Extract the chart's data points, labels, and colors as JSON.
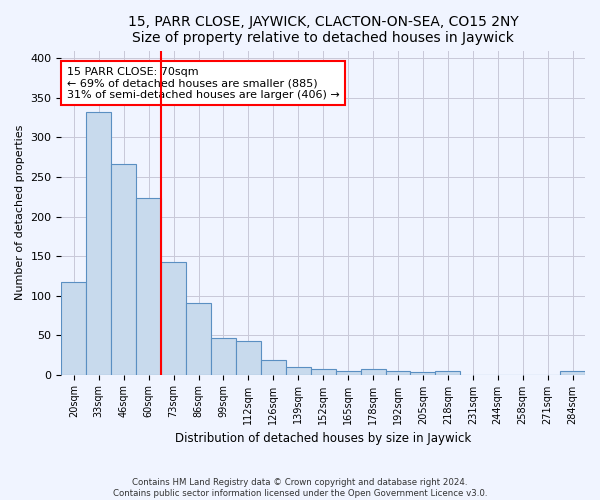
{
  "title": "15, PARR CLOSE, JAYWICK, CLACTON-ON-SEA, CO15 2NY",
  "subtitle": "Size of property relative to detached houses in Jaywick",
  "xlabel": "Distribution of detached houses by size in Jaywick",
  "ylabel": "Number of detached properties",
  "categories": [
    "20sqm",
    "33sqm",
    "46sqm",
    "60sqm",
    "73sqm",
    "86sqm",
    "99sqm",
    "112sqm",
    "126sqm",
    "139sqm",
    "152sqm",
    "165sqm",
    "178sqm",
    "192sqm",
    "205sqm",
    "218sqm",
    "231sqm",
    "244sqm",
    "258sqm",
    "271sqm",
    "284sqm"
  ],
  "values": [
    117,
    332,
    267,
    224,
    142,
    90,
    46,
    42,
    19,
    10,
    7,
    5,
    7,
    4,
    3,
    4,
    0,
    0,
    0,
    0,
    5
  ],
  "bar_color": "#c8daed",
  "bar_edge_color": "#5a8fc2",
  "vline_x_idx": 4,
  "vline_color": "red",
  "annotation_line1": "15 PARR CLOSE: 70sqm",
  "annotation_line2": "← 69% of detached houses are smaller (885)",
  "annotation_line3": "31% of semi-detached houses are larger (406) →",
  "annotation_box_color": "white",
  "annotation_box_edge": "red",
  "ylim": [
    0,
    410
  ],
  "yticks": [
    0,
    50,
    100,
    150,
    200,
    250,
    300,
    350,
    400
  ],
  "footer": "Contains HM Land Registry data © Crown copyright and database right 2024.\nContains public sector information licensed under the Open Government Licence v3.0.",
  "bg_color": "#f0f4ff",
  "grid_color": "#c8c8d8",
  "title_fontsize": 10,
  "subtitle_fontsize": 9
}
